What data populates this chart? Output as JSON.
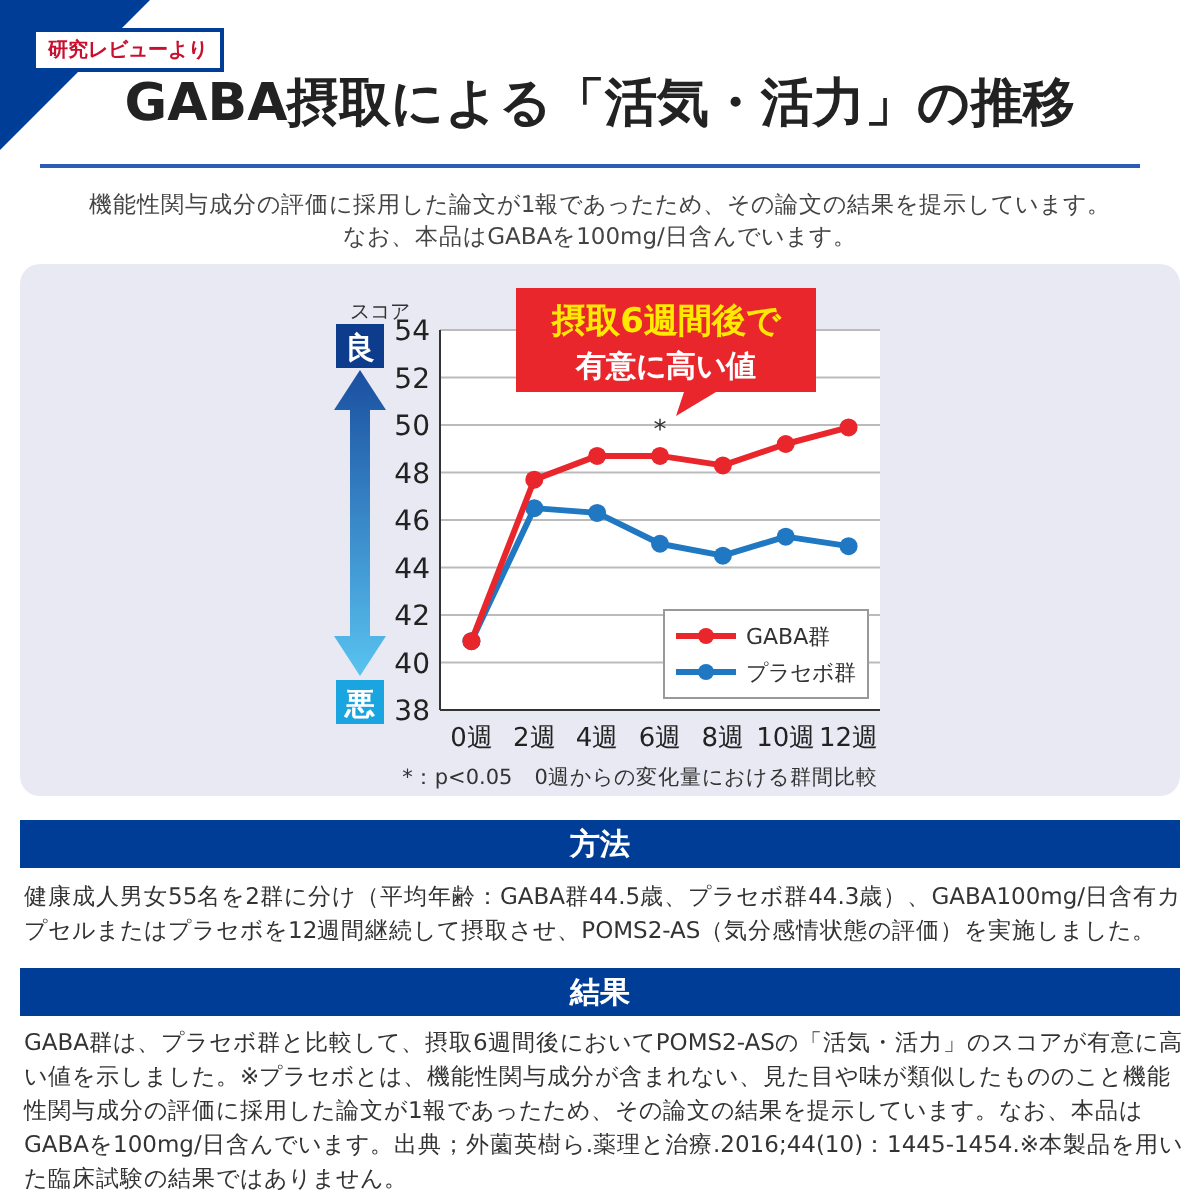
{
  "chart_data": {
    "type": "line",
    "title": "GABA摂取による「活気・活力」の推移",
    "subtitle": "機能性関与成分の評価に採用した論文が1報であったため、その論文の結果を提示しています。",
    "ylabel": "スコア",
    "categories": [
      "0週",
      "2週",
      "4週",
      "6週",
      "8週",
      "10週",
      "12週"
    ],
    "series": [
      {
        "name": "GABA群",
        "color": "#e8262b",
        "values": [
          40.9,
          47.7,
          48.7,
          48.7,
          48.3,
          49.2,
          49.9
        ]
      },
      {
        "name": "プラセボ群",
        "color": "#1f78c1",
        "values": [
          40.9,
          46.5,
          46.3,
          45.0,
          44.5,
          45.3,
          44.9
        ]
      }
    ],
    "ylim": [
      38,
      54
    ],
    "yticks": [
      38,
      40,
      42,
      44,
      46,
      48,
      50,
      52,
      54
    ],
    "grid": "y",
    "legend": "bottom right",
    "marker": "circle",
    "line_style": "solid",
    "annotations": [
      "研究レビューより",
      "良",
      "悪",
      "摂取6週間後で",
      "有意に高い値",
      "*",
      "*：p<0.05　0週からの変化量における群間比較",
      "方法",
      "健康成人男女55名を2群に分け（平均年齢：GABA群44.5歳、プラセボ群44.3歳）、GABA100mg/日含有カプセルまたはプラセボを12週間継続して摂取させ、POMS2-AS（気分感情状態の評価）を実施しました。",
      "結果",
      "GABA群は、プラセボ群と比較して、摂取6週間後においてPOMS2-ASの「活気・活力」のスコアが有意に高い値を示しました。※プラセボとは、機能性関与成分が含まれない、見た目や味が類似したもののこと機能性関与成分の評価に採用した論文が1報であったため、その論文の結果を提示しています。なお、本品はGABAを100mg/日含んでいます。出典；外薗英樹ら.薬理と治療.2016;44(10)：1445-1454.※本製品を用いた臨床試験の結果ではありません。",
      "なお、本品はGABAを100mg/日含んでいます。"
    ]
  }
}
